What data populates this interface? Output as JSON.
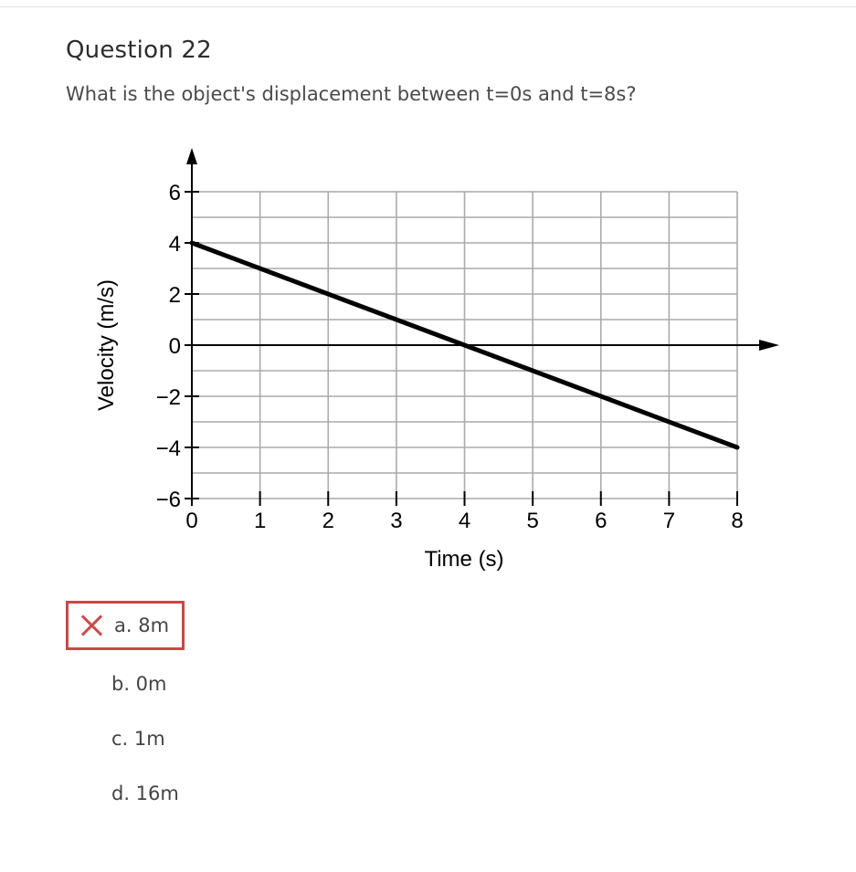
{
  "question": {
    "title": "Question 22",
    "text": "What is the object's displacement between t=0s and t=8s?"
  },
  "answers": [
    {
      "label": "a. 8m",
      "state": "incorrect-selected",
      "icon": "x-mark-icon"
    },
    {
      "label": "b. 0m"
    },
    {
      "label": "c. 1m"
    },
    {
      "label": "d. 16m"
    }
  ],
  "colors": {
    "incorrect": "#c94848",
    "grid": "#aaaaaa",
    "line": "#000000"
  },
  "chart_data": {
    "type": "line",
    "xlabel": "Time (s)",
    "ylabel": "Velocity (m/s)",
    "xlim": [
      0,
      8
    ],
    "ylim": [
      -6,
      6
    ],
    "xticks": [
      "0",
      "1",
      "2",
      "3",
      "4",
      "5",
      "6",
      "7",
      "8"
    ],
    "yticks": [
      "6",
      "4",
      "2",
      "0",
      "−2",
      "−4",
      "−6"
    ],
    "x": [
      0,
      8
    ],
    "y": [
      4,
      -4
    ],
    "grid": true
  }
}
